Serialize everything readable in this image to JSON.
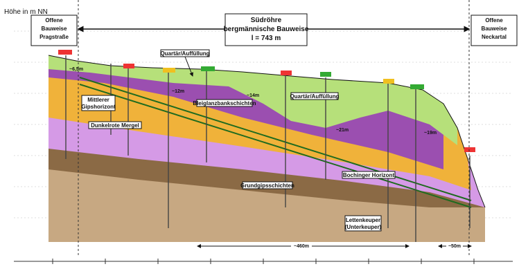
{
  "header": {
    "axis_title": "Höhe in m NN",
    "left_section": [
      "Offene",
      "Bauweise",
      "Pragstraße"
    ],
    "middle_section": [
      "Südröhre",
      "bergmännische Bauweise",
      "l = 743 m"
    ],
    "right_section": [
      "Offene",
      "Bauweise",
      "Neckartal"
    ]
  },
  "layers": {
    "quartaer_top": "Quartär/Auffüllung",
    "quartaer_mid": "Quartär/Auffüllung",
    "gips": [
      "Mittlerer",
      "Gipshorizont"
    ],
    "mergel": "Dunkelrote Mergel",
    "bleiglanz": "Bleiglanzbankschichten",
    "bochinger": "Bochinger Horizont",
    "grundgips": "Grundgipsschichten",
    "letten": [
      "Lettenkeuper",
      "(Unterkeuper)"
    ]
  },
  "dimensions": {
    "d1": "~6,5m",
    "d2": "~12m",
    "d3": "~14m",
    "d4": "~21m",
    "d5": "~19m",
    "length_main": "~460m",
    "length_end": "~50m"
  }
}
